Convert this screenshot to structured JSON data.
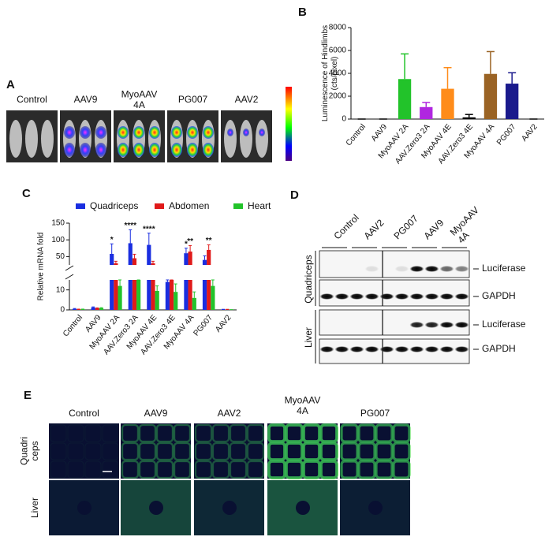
{
  "panels": {
    "a": "A",
    "b": "B",
    "c": "C",
    "d": "D",
    "e": "E"
  },
  "panel_a": {
    "labels": [
      "Control",
      "AAV9",
      "MyoAAV 4A",
      "PG007",
      "AAV2"
    ]
  },
  "chart_data": [
    {
      "type": "bar",
      "y_label": "Luminescence of Hindlimbs (cts/pixel)",
      "categories": [
        "Control",
        "AAV9",
        "MyoAAV 2A",
        "AAV.Zero3 2A",
        "MyoAAV 4E",
        "AAV.Zero3 4E",
        "MyoAAV 4A",
        "PG007",
        "AAV2"
      ],
      "values": [
        0,
        0,
        3500,
        1050,
        2650,
        150,
        3950,
        3100,
        0
      ],
      "errors": [
        0,
        0,
        2200,
        400,
        1850,
        250,
        1950,
        950,
        0
      ],
      "colors": [
        "#000000",
        "#000000",
        "#22c32a",
        "#b026e0",
        "#ff8c1a",
        "#000000",
        "#9a6324",
        "#1a1a8c",
        "#000000"
      ],
      "ylim": [
        0,
        8000
      ],
      "yticks": [
        0,
        2000,
        4000,
        6000,
        8000
      ]
    },
    {
      "type": "grouped_bar",
      "y_label": "Relative mRNA fold",
      "categories": [
        "Control",
        "AAV9",
        "MyoAAV 2A",
        "AAV.Zero3 2A",
        "MyoAAV 4E",
        "AAV.Zero3 4E",
        "MyoAAV 4A",
        "PG007",
        "AAV2"
      ],
      "series": [
        {
          "name": "Quadriceps",
          "color": "#1a2ee0",
          "values": [
            0.5,
            1.2,
            58,
            90,
            85,
            14,
            60,
            40,
            0.2
          ],
          "errors": [
            0.2,
            0.3,
            30,
            40,
            35,
            3,
            15,
            12,
            0.1
          ]
        },
        {
          "name": "Abdomen",
          "color": "#e01a1a",
          "values": [
            0.3,
            0.8,
            30,
            45,
            30,
            16,
            65,
            70,
            0.2
          ],
          "errors": [
            0.1,
            0.2,
            6,
            12,
            6,
            4,
            18,
            15,
            0.1
          ]
        },
        {
          "name": "Heart",
          "color": "#22c32a",
          "values": [
            0.3,
            0.9,
            12,
            20,
            9.5,
            9,
            6,
            12,
            0.1
          ],
          "errors": [
            0.1,
            0.2,
            3,
            4,
            2.5,
            4,
            3,
            3,
            0.05
          ]
        }
      ],
      "ylim": [
        0,
        150
      ],
      "ybreak": [
        15,
        25
      ],
      "yticks": [
        0,
        10,
        50,
        100,
        150
      ],
      "annotations": [
        {
          "text": "*",
          "category": "MyoAAV 2A",
          "series": "Quadriceps"
        },
        {
          "text": "****",
          "category": "AAV.Zero3 2A",
          "series": "Quadriceps"
        },
        {
          "text": "****",
          "category": "MyoAAV 4E",
          "series": "Quadriceps"
        },
        {
          "text": "*",
          "category": "MyoAAV 4A",
          "series": "Quadriceps"
        },
        {
          "text": "**",
          "category": "MyoAAV 4A",
          "series": "Abdomen"
        },
        {
          "text": "**",
          "category": "PG007",
          "series": "Abdomen"
        }
      ]
    }
  ],
  "panel_d": {
    "columns": [
      "Control",
      "AAV2",
      "PG007",
      "AAV9",
      "MyoAAV 4A"
    ],
    "rows": [
      "Quadriceps",
      "Liver"
    ],
    "bands": [
      "Luciferase",
      "GAPDH"
    ]
  },
  "panel_e": {
    "columns": [
      "Control",
      "AAV9",
      "AAV2",
      "MyoAAV 4A",
      "PG007"
    ],
    "rows": [
      "Quadri ceps",
      "Liver"
    ]
  }
}
